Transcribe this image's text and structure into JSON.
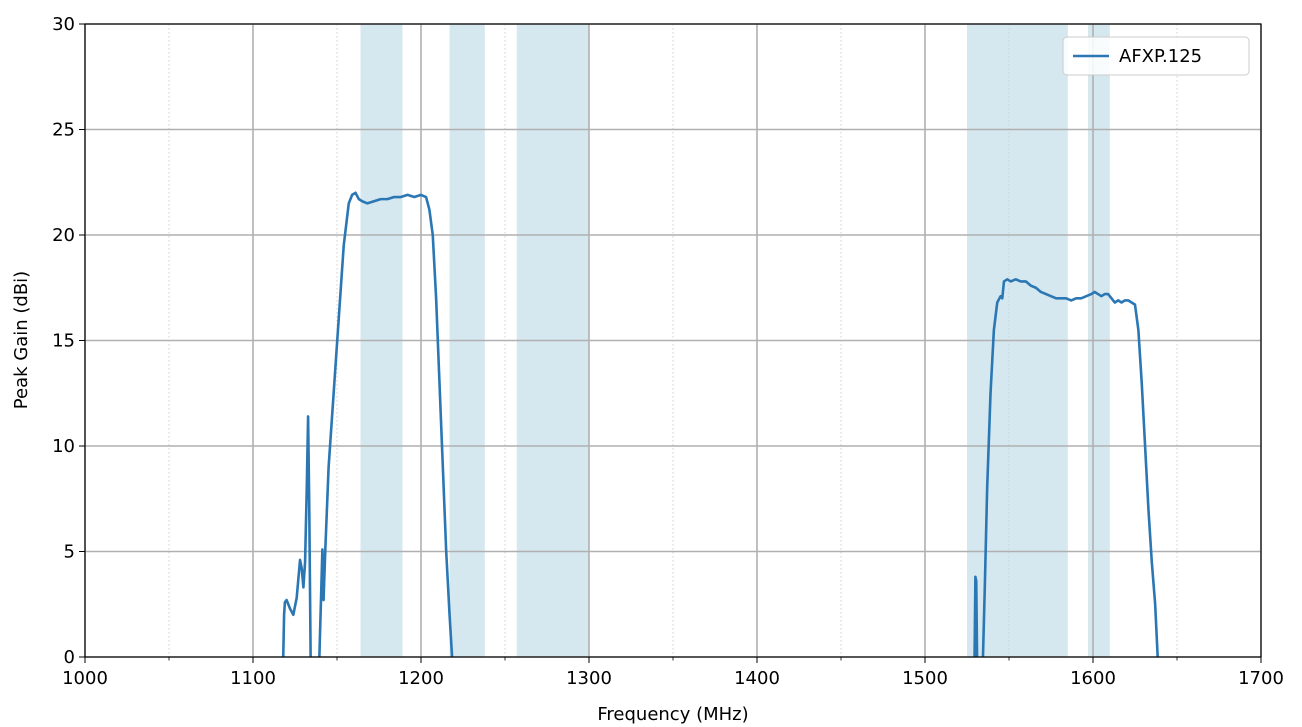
{
  "chart_data": {
    "type": "line",
    "xlabel": "Frequency (MHz)",
    "ylabel": "Peak Gain (dBi)",
    "xlim": [
      1000,
      1700
    ],
    "ylim": [
      0,
      30
    ],
    "x_major_ticks": [
      1000,
      1100,
      1200,
      1300,
      1400,
      1500,
      1600,
      1700
    ],
    "x_minor_ticks": [
      1050,
      1150,
      1250,
      1350,
      1450,
      1550,
      1650
    ],
    "y_ticks": [
      0,
      5,
      10,
      15,
      20,
      25,
      30
    ],
    "x_tick_labels": [
      "1000",
      "1100",
      "1200",
      "1300",
      "1400",
      "1500",
      "1600",
      "1700"
    ],
    "y_tick_labels": [
      "0",
      "5",
      "10",
      "15",
      "20",
      "25",
      "30"
    ],
    "grid": true,
    "legend_position": "top-right",
    "shaded_bands": [
      [
        1164,
        1189
      ],
      [
        1217,
        1238
      ],
      [
        1257,
        1300
      ],
      [
        1525,
        1585
      ],
      [
        1597,
        1610
      ]
    ],
    "colors": {
      "series": "#2a77b4",
      "band": "#d5e8f0",
      "grid_major": "#b0b0b0",
      "grid_minor": "#d0d0d0"
    },
    "series": [
      {
        "name": "AFXP.125",
        "segments": [
          [
            [
              1118,
              0
            ],
            [
              1118.5,
              2.0
            ],
            [
              1119,
              2.6
            ],
            [
              1120,
              2.7
            ],
            [
              1122,
              2.3
            ],
            [
              1124,
              2.0
            ],
            [
              1126,
              2.8
            ],
            [
              1128,
              4.6
            ],
            [
              1129,
              4.2
            ],
            [
              1130,
              3.3
            ],
            [
              1131,
              4.5
            ],
            [
              1132,
              8.0
            ],
            [
              1132.8,
              11.4
            ],
            [
              1133.5,
              7.0
            ],
            [
              1134.3,
              0
            ]
          ],
          [
            [
              1139.5,
              0
            ],
            [
              1140.5,
              2.8
            ],
            [
              1141.3,
              5.1
            ],
            [
              1142,
              2.7
            ],
            [
              1143,
              5.0
            ],
            [
              1145,
              9.0
            ],
            [
              1148,
              12.5
            ],
            [
              1151,
              16.0
            ],
            [
              1154,
              19.5
            ],
            [
              1157,
              21.5
            ],
            [
              1159,
              21.9
            ],
            [
              1161,
              22.0
            ],
            [
              1163,
              21.7
            ],
            [
              1165,
              21.6
            ],
            [
              1168,
              21.5
            ],
            [
              1172,
              21.6
            ],
            [
              1176,
              21.7
            ],
            [
              1180,
              21.7
            ],
            [
              1184,
              21.8
            ],
            [
              1188,
              21.8
            ],
            [
              1192,
              21.9
            ],
            [
              1196,
              21.8
            ],
            [
              1200,
              21.9
            ],
            [
              1203,
              21.8
            ],
            [
              1205,
              21.2
            ],
            [
              1207,
              20.0
            ],
            [
              1209,
              17.0
            ],
            [
              1211,
              13.0
            ],
            [
              1213,
              9.0
            ],
            [
              1215,
              5.0
            ],
            [
              1217,
              2.0
            ],
            [
              1218.5,
              0
            ]
          ],
          [
            [
              1529.5,
              0
            ],
            [
              1530,
              3.8
            ],
            [
              1530.5,
              3.6
            ],
            [
              1531,
              0
            ]
          ],
          [
            [
              1534.5,
              0
            ],
            [
              1535.5,
              3.0
            ],
            [
              1537,
              8.0
            ],
            [
              1539,
              12.5
            ],
            [
              1541,
              15.5
            ],
            [
              1543,
              16.8
            ],
            [
              1545,
              17.1
            ],
            [
              1546,
              17.0
            ],
            [
              1547,
              17.8
            ],
            [
              1549,
              17.9
            ],
            [
              1551,
              17.8
            ],
            [
              1554,
              17.9
            ],
            [
              1557,
              17.8
            ],
            [
              1560,
              17.8
            ],
            [
              1563,
              17.6
            ],
            [
              1566,
              17.5
            ],
            [
              1569,
              17.3
            ],
            [
              1572,
              17.2
            ],
            [
              1575,
              17.1
            ],
            [
              1578,
              17.0
            ],
            [
              1581,
              17.0
            ],
            [
              1584,
              17.0
            ],
            [
              1587,
              16.9
            ],
            [
              1590,
              17.0
            ],
            [
              1593,
              17.0
            ],
            [
              1596,
              17.1
            ],
            [
              1599,
              17.2
            ],
            [
              1601,
              17.3
            ],
            [
              1603,
              17.2
            ],
            [
              1605,
              17.1
            ],
            [
              1607,
              17.2
            ],
            [
              1609,
              17.2
            ],
            [
              1611,
              17.0
            ],
            [
              1613,
              16.8
            ],
            [
              1615,
              16.9
            ],
            [
              1617,
              16.8
            ],
            [
              1619,
              16.9
            ],
            [
              1621,
              16.9
            ],
            [
              1623,
              16.8
            ],
            [
              1625,
              16.7
            ],
            [
              1627,
              15.5
            ],
            [
              1629,
              13.0
            ],
            [
              1631,
              10.0
            ],
            [
              1633,
              7.0
            ],
            [
              1635,
              4.5
            ],
            [
              1637,
              2.5
            ],
            [
              1638.5,
              0
            ]
          ]
        ]
      }
    ]
  }
}
